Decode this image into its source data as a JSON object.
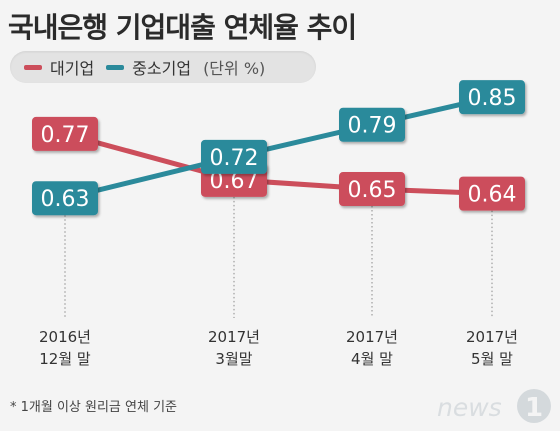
{
  "title": "국내은행 기업대출 연체율 추이",
  "legend": {
    "items": [
      {
        "label": "대기업",
        "color": "#cc4e5b"
      },
      {
        "label": "중소기업",
        "color": "#2b8a9b"
      }
    ],
    "unit": "(단위 %)"
  },
  "chart_data": {
    "type": "line",
    "categories": [
      [
        "2016년",
        "12월 말"
      ],
      [
        "2017년",
        "3월말"
      ],
      [
        "2017년",
        "4월 말"
      ],
      [
        "2017년",
        "5월 말"
      ]
    ],
    "series": [
      {
        "name": "대기업",
        "color": "#cc4e5b",
        "values": [
          0.77,
          0.67,
          0.65,
          0.64
        ]
      },
      {
        "name": "중소기업",
        "color": "#2b8a9b",
        "values": [
          0.63,
          0.72,
          0.79,
          0.85
        ]
      }
    ],
    "ylim": [
      0.6,
      0.87
    ],
    "xlabel": "",
    "ylabel": "",
    "grid": false,
    "legend_position": "top-left"
  },
  "footnote": "* 1개월 이상 원리금 연체 기준",
  "logo": {
    "text": "news",
    "mark": "1"
  }
}
